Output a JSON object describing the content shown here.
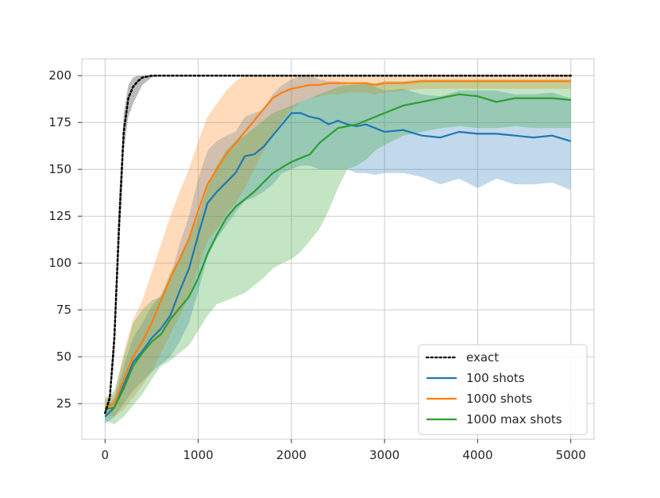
{
  "chart_data": {
    "type": "line",
    "title": "",
    "xlabel": "",
    "ylabel": "",
    "xlim": [
      -250,
      5250
    ],
    "ylim": [
      6,
      209
    ],
    "xticks": [
      0,
      1000,
      2000,
      3000,
      4000,
      5000
    ],
    "yticks": [
      25,
      50,
      75,
      100,
      125,
      150,
      175,
      200
    ],
    "xtick_labels": [
      "0",
      "1000",
      "2000",
      "3000",
      "4000",
      "5000"
    ],
    "ytick_labels": [
      "25",
      "50",
      "75",
      "100",
      "125",
      "150",
      "175",
      "200"
    ],
    "grid": true,
    "legend_position": "lower right",
    "series": [
      {
        "name": "exact",
        "color": "#000000",
        "style": "dotted",
        "x": [
          0,
          50,
          100,
          150,
          200,
          250,
          300,
          350,
          400,
          450,
          500,
          600,
          800,
          1000,
          2000,
          3000,
          4000,
          5000
        ],
        "values": [
          20,
          28,
          60,
          120,
          170,
          188,
          194,
          197,
          199,
          199.5,
          200,
          200,
          200,
          200,
          200,
          200,
          200,
          200
        ],
        "band_lower": [
          18,
          25,
          50,
          105,
          160,
          178,
          185,
          190,
          195,
          197,
          199,
          200,
          200,
          200,
          200,
          200,
          200,
          200
        ],
        "band_upper": [
          22,
          31,
          70,
          135,
          180,
          195,
          199,
          200,
          200,
          200,
          200,
          200,
          200,
          200,
          200,
          200,
          200,
          200
        ]
      },
      {
        "name": "100 shots",
        "color": "#1f77b4",
        "style": "solid",
        "x": [
          0,
          100,
          200,
          300,
          400,
          500,
          600,
          700,
          800,
          900,
          1000,
          1100,
          1200,
          1300,
          1400,
          1500,
          1600,
          1700,
          1800,
          1900,
          2000,
          2100,
          2200,
          2300,
          2400,
          2500,
          2600,
          2700,
          2800,
          2900,
          3000,
          3200,
          3400,
          3600,
          3800,
          4000,
          4200,
          4400,
          4600,
          4800,
          5000
        ],
        "values": [
          18,
          23,
          35,
          47,
          53,
          60,
          65,
          72,
          85,
          97,
          115,
          132,
          138,
          143,
          148,
          157,
          158,
          162,
          168,
          174,
          180,
          180,
          178,
          177,
          174,
          176,
          174,
          173,
          174,
          172,
          170,
          171,
          168,
          167,
          170,
          169,
          169,
          168,
          167,
          168,
          165
        ],
        "band_lower": [
          14,
          18,
          25,
          32,
          37,
          42,
          46,
          50,
          58,
          68,
          85,
          103,
          113,
          120,
          127,
          133,
          135,
          138,
          142,
          148,
          150,
          152,
          152,
          150,
          150,
          150,
          150,
          148,
          148,
          147,
          148,
          148,
          146,
          142,
          145,
          140,
          145,
          142,
          142,
          143,
          139
        ],
        "band_upper": [
          22,
          28,
          45,
          60,
          68,
          77,
          83,
          92,
          110,
          125,
          145,
          160,
          165,
          168,
          170,
          178,
          180,
          182,
          190,
          195,
          198,
          200,
          200,
          198,
          197,
          197,
          195,
          195,
          196,
          194,
          192,
          193,
          190,
          189,
          192,
          192,
          192,
          190,
          190,
          191,
          188
        ]
      },
      {
        "name": "1000 shots",
        "color": "#ff7f0e",
        "style": "solid",
        "x": [
          0,
          100,
          200,
          300,
          400,
          500,
          600,
          700,
          800,
          900,
          1000,
          1100,
          1200,
          1300,
          1400,
          1500,
          1600,
          1700,
          1800,
          1900,
          2000,
          2100,
          2200,
          2300,
          2400,
          2500,
          2600,
          2700,
          2800,
          2900,
          3000,
          3200,
          3400,
          3600,
          3800,
          4000,
          4200,
          4400,
          4600,
          4800,
          5000
        ],
        "values": [
          23,
          25,
          38,
          50,
          58,
          68,
          80,
          92,
          102,
          113,
          128,
          142,
          150,
          158,
          164,
          170,
          176,
          182,
          188,
          191,
          193,
          194,
          195,
          195,
          196,
          196,
          196,
          196,
          196,
          195,
          196,
          196,
          197,
          197,
          197,
          197,
          197,
          197,
          197,
          197,
          197
        ],
        "band_lower": [
          19,
          18,
          22,
          28,
          35,
          42,
          52,
          62,
          72,
          82,
          98,
          112,
          118,
          126,
          132,
          140,
          150,
          160,
          168,
          176,
          182,
          186,
          188,
          189,
          190,
          190,
          191,
          191,
          191,
          190,
          191,
          192,
          193,
          193,
          193,
          193,
          193,
          193,
          193,
          193,
          193
        ],
        "band_upper": [
          27,
          30,
          52,
          70,
          80,
          95,
          110,
          125,
          138,
          150,
          165,
          178,
          185,
          192,
          197,
          200,
          200,
          200,
          200,
          200,
          200,
          200,
          200,
          200,
          200,
          200,
          200,
          200,
          200,
          200,
          200,
          200,
          200,
          200,
          200,
          200,
          200,
          200,
          200,
          200,
          200
        ]
      },
      {
        "name": "1000 max shots",
        "color": "#2ca02c",
        "style": "solid",
        "x": [
          0,
          100,
          200,
          300,
          400,
          500,
          600,
          700,
          800,
          900,
          1000,
          1100,
          1200,
          1300,
          1400,
          1500,
          1600,
          1700,
          1800,
          1900,
          2000,
          2100,
          2200,
          2300,
          2400,
          2500,
          2600,
          2700,
          2800,
          2900,
          3000,
          3200,
          3400,
          3600,
          3800,
          4000,
          4200,
          4400,
          4600,
          4800,
          5000
        ],
        "values": [
          22,
          23,
          33,
          45,
          52,
          58,
          62,
          70,
          76,
          82,
          92,
          105,
          115,
          124,
          130,
          134,
          138,
          143,
          148,
          151,
          154,
          156,
          158,
          164,
          168,
          172,
          173,
          174,
          176,
          178,
          180,
          184,
          186,
          188,
          190,
          189,
          186,
          188,
          188,
          188,
          187
        ],
        "band_lower": [
          16,
          14,
          18,
          24,
          30,
          38,
          45,
          48,
          52,
          56,
          64,
          72,
          78,
          80,
          82,
          84,
          88,
          92,
          97,
          100,
          102,
          106,
          112,
          118,
          128,
          140,
          150,
          152,
          155,
          160,
          163,
          168,
          170,
          172,
          173,
          172,
          172,
          173,
          172,
          172,
          172
        ],
        "band_upper": [
          28,
          32,
          50,
          68,
          75,
          80,
          82,
          95,
          102,
          112,
          125,
          140,
          152,
          160,
          165,
          168,
          172,
          176,
          180,
          182,
          184,
          186,
          188,
          190,
          192,
          194,
          195,
          196,
          196,
          196,
          197,
          197,
          198,
          198,
          198,
          198,
          198,
          198,
          198,
          198,
          198
        ]
      }
    ]
  }
}
